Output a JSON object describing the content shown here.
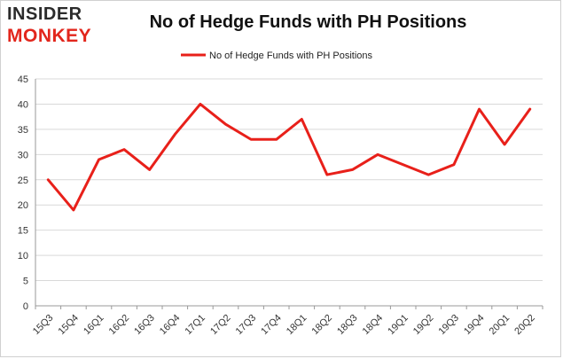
{
  "logo": {
    "line1": "INSIDER",
    "line2": "MONKEY"
  },
  "chart_data": {
    "type": "line",
    "title": "No of Hedge Funds with PH Positions",
    "categories": [
      "15Q3",
      "15Q4",
      "16Q1",
      "16Q2",
      "16Q3",
      "16Q4",
      "17Q1",
      "17Q2",
      "17Q3",
      "17Q4",
      "18Q1",
      "18Q2",
      "18Q3",
      "18Q4",
      "19Q1",
      "19Q2",
      "19Q3",
      "19Q4",
      "20Q1",
      "20Q2"
    ],
    "series": [
      {
        "name": "No of Hedge Funds with PH Positions",
        "values": [
          25,
          19,
          29,
          31,
          27,
          34,
          40,
          36,
          33,
          33,
          37,
          26,
          27,
          30,
          28,
          26,
          28,
          39,
          32,
          39
        ]
      }
    ],
    "ylim": [
      0,
      45
    ],
    "yticks": [
      0,
      5,
      10,
      15,
      20,
      25,
      30,
      35,
      40,
      45
    ],
    "grid": true,
    "legend": "top-center",
    "colors": {
      "line": "#e8201a",
      "grid": "#d9d9d9",
      "axis": "#999999"
    }
  }
}
